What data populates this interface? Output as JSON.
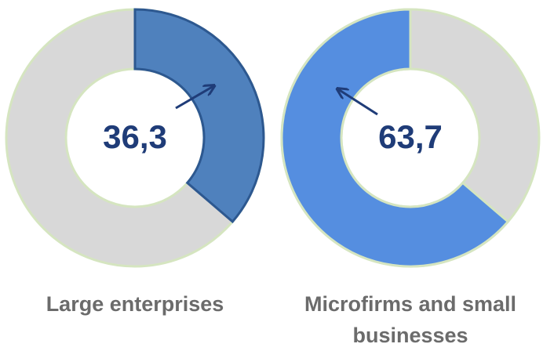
{
  "chart_data": [
    {
      "type": "donut",
      "categories": [
        "Large enterprises"
      ],
      "values": [
        36.3
      ],
      "value_labels": [
        "36,3"
      ],
      "color": "#4f81bd",
      "ylim": [
        0,
        100
      ],
      "direction": "clockwise"
    },
    {
      "type": "donut",
      "categories": [
        "Microfirms and small businesses"
      ],
      "values": [
        63.7
      ],
      "value_labels": [
        "63,7"
      ],
      "color": "#558ee0",
      "ylim": [
        0,
        100
      ],
      "direction": "counterclockwise"
    }
  ]
}
